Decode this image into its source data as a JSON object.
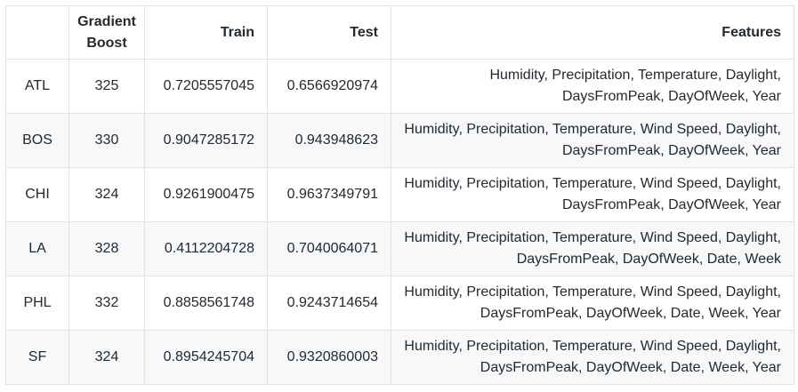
{
  "table": {
    "headers": {
      "city": "",
      "gradient_boost": "Gradient Boost",
      "train": "Train",
      "test": "Test",
      "features": "Features"
    },
    "rows": [
      {
        "city": "ATL",
        "gradient_boost": "325",
        "train": "0.7205557045",
        "test": "0.6566920974",
        "features": "Humidity, Precipitation, Temperature, Daylight, DaysFromPeak, DayOfWeek, Year"
      },
      {
        "city": "BOS",
        "gradient_boost": "330",
        "train": "0.9047285172",
        "test": "0.943948623",
        "features": "Humidity, Precipitation, Temperature, Wind Speed, Daylight, DaysFromPeak, DayOfWeek, Year"
      },
      {
        "city": "CHI",
        "gradient_boost": "324",
        "train": "0.9261900475",
        "test": "0.9637349791",
        "features": "Humidity, Precipitation, Temperature, Wind Speed, Daylight, DaysFromPeak, DayOfWeek, Year"
      },
      {
        "city": "LA",
        "gradient_boost": "328",
        "train": "0.4112204728",
        "test": "0.7040064071",
        "features": "Humidity, Precipitation, Temperature, Wind Speed, Daylight, DaysFromPeak, DayOfWeek, Date, Week"
      },
      {
        "city": "PHL",
        "gradient_boost": "332",
        "train": "0.8858561748",
        "test": "0.9243714654",
        "features": "Humidity, Precipitation, Temperature, Wind Speed, Daylight, DaysFromPeak, DayOfWeek, Date, Week, Year"
      },
      {
        "city": "SF",
        "gradient_boost": "324",
        "train": "0.8954245704",
        "test": "0.9320860003",
        "features": "Humidity, Precipitation, Temperature, Wind Speed, Daylight, DaysFromPeak, DayOfWeek, Date, Week, Year"
      }
    ]
  }
}
